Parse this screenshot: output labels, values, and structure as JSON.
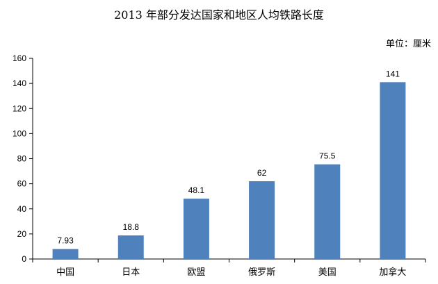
{
  "chart_data": {
    "type": "bar",
    "title": "2013 年部分发达国家和地区人均铁路长度",
    "unit": "单位：厘米",
    "categories": [
      "中国",
      "日本",
      "欧盟",
      "俄罗斯",
      "美国",
      "加拿大"
    ],
    "values": [
      7.93,
      18.8,
      48.1,
      62,
      75.5,
      141
    ],
    "value_labels": [
      "7.93",
      "18.8",
      "48.1",
      "62",
      "75.5",
      "141"
    ],
    "ylim": [
      0,
      160
    ],
    "yticks": [
      0,
      20,
      40,
      60,
      80,
      100,
      120,
      140,
      160
    ],
    "xlabel": "",
    "ylabel": "",
    "grid": false,
    "bar_color": "#4F81BD"
  }
}
